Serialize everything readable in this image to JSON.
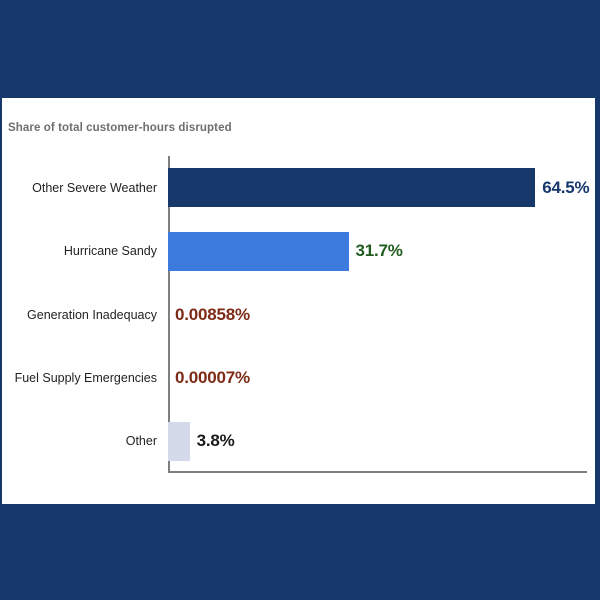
{
  "page": {
    "background_color": "#16386B",
    "panel_color": "#FFFFFF",
    "axis_color": "#7F7F7F"
  },
  "chart_data": {
    "type": "bar",
    "orientation": "horizontal",
    "title": "Share of total customer-hours disrupted",
    "title_color": "#6D6E71",
    "categories": [
      "Other Severe Weather",
      "Hurricane Sandy",
      "Generation Inadequacy",
      "Fuel Supply Emergencies",
      "Other"
    ],
    "values": [
      64.5,
      31.7,
      0.00858,
      7e-05,
      3.8
    ],
    "value_labels": [
      "64.5%",
      "31.7%",
      "0.00858%",
      "0.00007%",
      "3.8%"
    ],
    "unit": "%",
    "bar_colors": [
      "#16386B",
      "#3D7ADD",
      null,
      null,
      "#D4DAE9"
    ],
    "value_label_colors": [
      "#16386B",
      "#205C20",
      "#7D2B16",
      "#7D2B16",
      "#1A1A1A"
    ],
    "category_label_color": "#231F20",
    "xlabel": "",
    "ylabel": "",
    "xlim": [
      0,
      73.6
    ],
    "grid": false,
    "legend": false
  }
}
